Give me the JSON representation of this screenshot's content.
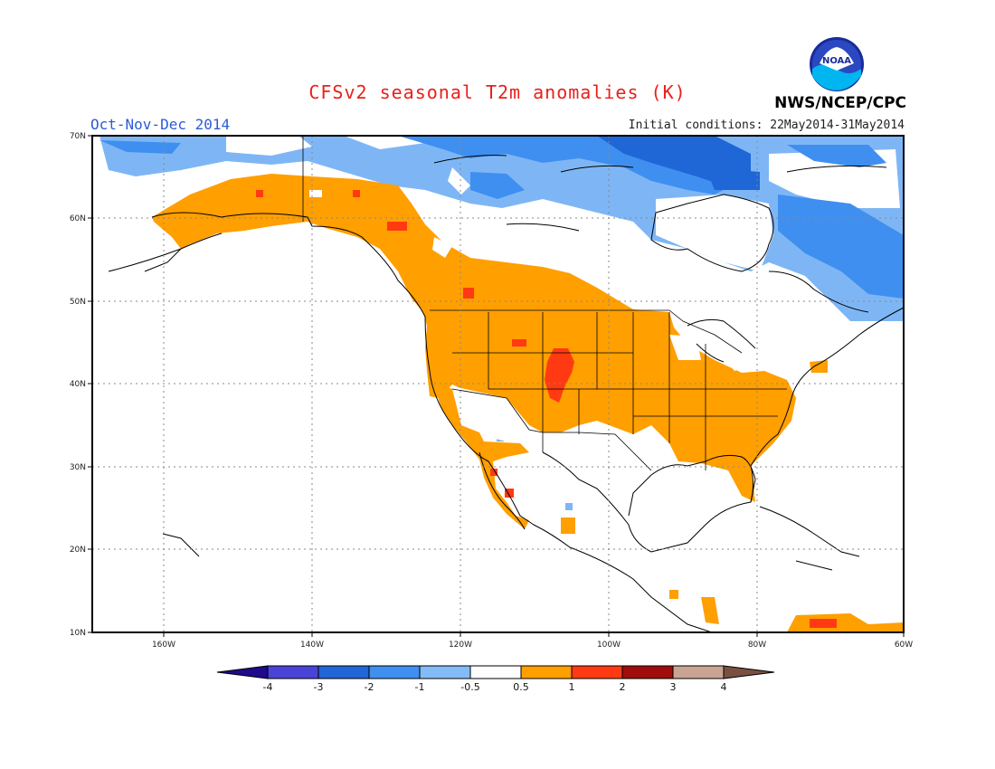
{
  "header": {
    "title": "CFSv2 seasonal T2m anomalies (K)",
    "season": "Oct-Nov-Dec 2014",
    "initial_conditions": "Initial conditions: 22May2014-31May2014",
    "agency": "NWS/NCEP/CPC",
    "logo_text": "NOAA"
  },
  "map": {
    "lat_labels": [
      "70N",
      "60N",
      "50N",
      "40N",
      "30N",
      "20N",
      "10N"
    ],
    "lon_labels": [
      "160W",
      "140W",
      "120W",
      "100W",
      "80W",
      "60W"
    ],
    "colors": {
      "lt_blue": "#7eb6f5",
      "med_blue": "#3f8ff0",
      "dk_blue": "#1f66d6",
      "orange": "#ff9f00",
      "red_orange": "#ff3a12"
    }
  },
  "colorbar": {
    "labels": [
      "-4",
      "-3",
      "-2",
      "-1",
      "-0.5",
      "0.5",
      "1",
      "2",
      "3",
      "4"
    ],
    "colors": [
      "#1f0a8c",
      "#4a43d8",
      "#2166d6",
      "#3f8ff0",
      "#82bbf6",
      "#ffffff",
      "#ff9f00",
      "#ff3a12",
      "#a10d0d",
      "#c9a493",
      "#7a5043"
    ]
  }
}
